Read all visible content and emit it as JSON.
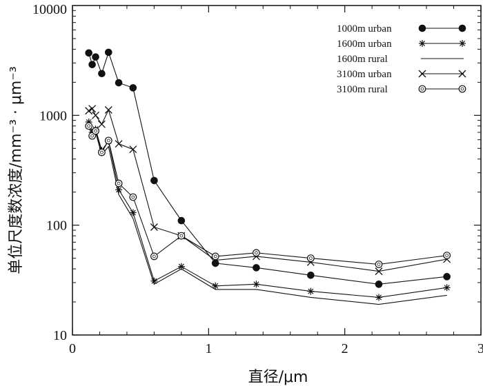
{
  "chart_data": {
    "type": "line",
    "title": "",
    "xlabel": "直径/μm",
    "ylabel": "单位尺度数浓度/mm⁻³ · μm⁻³",
    "xlim": [
      0,
      3
    ],
    "ylim": [
      10,
      10000
    ],
    "yscale": "log",
    "grid": false,
    "legend_position": "top-right",
    "x_ticks": [
      "0",
      "1",
      "2",
      "3"
    ],
    "y_ticks": [
      "10",
      "100",
      "1000",
      "10000"
    ],
    "series": [
      {
        "name": "1000m  urban",
        "marker": "filled-circle",
        "x": [
          0.12,
          0.145,
          0.17,
          0.215,
          0.265,
          0.34,
          0.445,
          0.6,
          0.8,
          1.05,
          1.35,
          1.75,
          2.25,
          2.75
        ],
        "y": [
          3700,
          2900,
          3400,
          2400,
          3750,
          1980,
          1780,
          255,
          110,
          45,
          41,
          35,
          29,
          34
        ]
      },
      {
        "name": "1600m  urban",
        "marker": "asterisk",
        "x": [
          0.12,
          0.145,
          0.17,
          0.215,
          0.265,
          0.34,
          0.445,
          0.6,
          0.8,
          1.05,
          1.35,
          1.75,
          2.25,
          2.75
        ],
        "y": [
          870,
          700,
          750,
          480,
          580,
          210,
          130,
          31,
          42,
          28,
          29,
          25,
          22,
          27
        ]
      },
      {
        "name": "1600m  rural",
        "marker": "none",
        "x": [
          0.12,
          0.145,
          0.17,
          0.215,
          0.265,
          0.34,
          0.445,
          0.6,
          0.8,
          1.05,
          1.35,
          1.75,
          2.25,
          2.75
        ],
        "y": [
          850,
          620,
          700,
          440,
          520,
          190,
          115,
          29,
          40,
          26,
          26,
          22,
          19,
          23
        ]
      },
      {
        "name": "3100m  urban",
        "marker": "x",
        "x": [
          0.12,
          0.145,
          0.17,
          0.215,
          0.265,
          0.34,
          0.445,
          0.6,
          0.8,
          1.05,
          1.35,
          1.75,
          2.25,
          2.75
        ],
        "y": [
          1100,
          1150,
          1000,
          830,
          1120,
          550,
          490,
          96,
          80,
          48,
          52,
          46,
          38,
          49
        ]
      },
      {
        "name": "3100m  rural",
        "marker": "open-circle",
        "x": [
          0.12,
          0.145,
          0.17,
          0.215,
          0.265,
          0.34,
          0.445,
          0.6,
          0.8,
          1.05,
          1.35,
          1.75,
          2.25,
          2.75
        ],
        "y": [
          800,
          650,
          720,
          460,
          590,
          240,
          180,
          52,
          80,
          52,
          56,
          50,
          44,
          53
        ]
      }
    ]
  }
}
